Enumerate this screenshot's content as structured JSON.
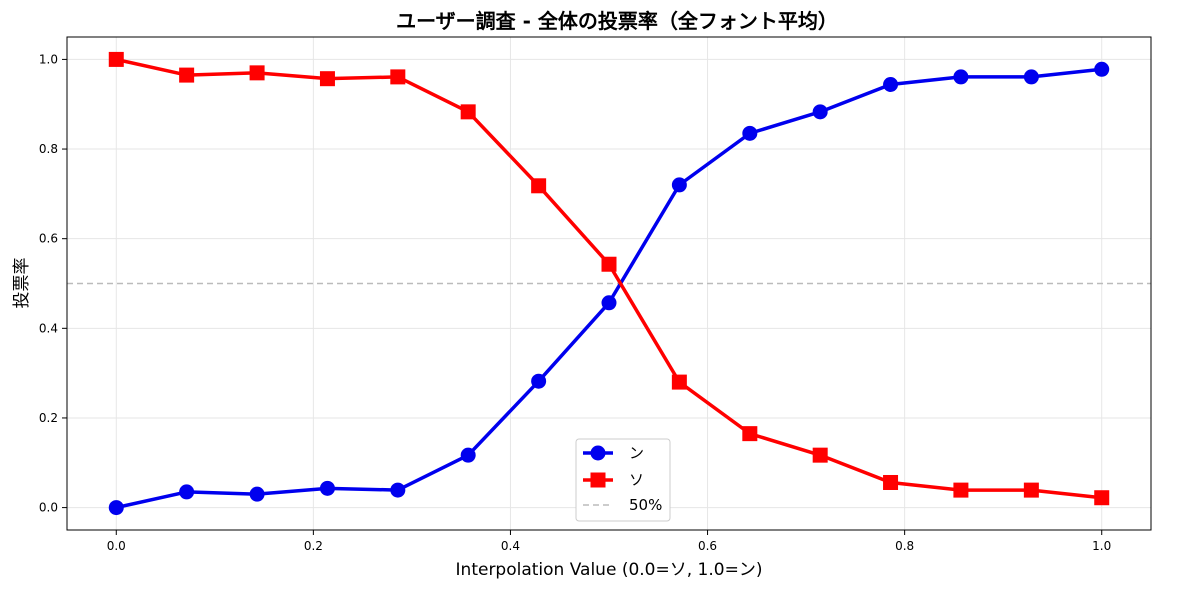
{
  "chart_data": {
    "type": "line",
    "title": "ユーザー調査 - 全体の投票率（全フォント平均）",
    "xlabel": "Interpolation Value (0.0=ソ, 1.0=ン)",
    "ylabel": "投票率",
    "xlim": [
      -0.05,
      1.05
    ],
    "ylim": [
      -0.05,
      1.05
    ],
    "xticks": [
      0.0,
      0.2,
      0.4,
      0.6,
      0.8,
      1.0
    ],
    "xtick_labels": [
      "0.0",
      "0.2",
      "0.4",
      "0.6",
      "0.8",
      "1.0"
    ],
    "yticks": [
      0.0,
      0.2,
      0.4,
      0.6,
      0.8,
      1.0
    ],
    "ytick_labels": [
      "0.0",
      "0.2",
      "0.4",
      "0.6",
      "0.8",
      "1.0"
    ],
    "grid": true,
    "legend_position": "bottom-center",
    "x": [
      0.0,
      0.0714,
      0.1429,
      0.2143,
      0.2857,
      0.3571,
      0.4286,
      0.5,
      0.5714,
      0.6429,
      0.7143,
      0.7857,
      0.8571,
      0.9286,
      1.0
    ],
    "series": [
      {
        "name": "ン",
        "color": "#0000ee",
        "marker": "circle",
        "values": [
          0.0,
          0.035,
          0.03,
          0.043,
          0.039,
          0.117,
          0.282,
          0.457,
          0.72,
          0.835,
          0.883,
          0.944,
          0.961,
          0.961,
          0.978
        ]
      },
      {
        "name": "ソ",
        "color": "#ff0000",
        "marker": "square",
        "values": [
          1.0,
          0.965,
          0.97,
          0.957,
          0.961,
          0.883,
          0.718,
          0.543,
          0.28,
          0.165,
          0.117,
          0.056,
          0.039,
          0.039,
          0.022
        ]
      }
    ],
    "reference_line": {
      "name": "50%",
      "y": 0.5,
      "color": "#bbbbbb",
      "style": "dashed"
    }
  }
}
